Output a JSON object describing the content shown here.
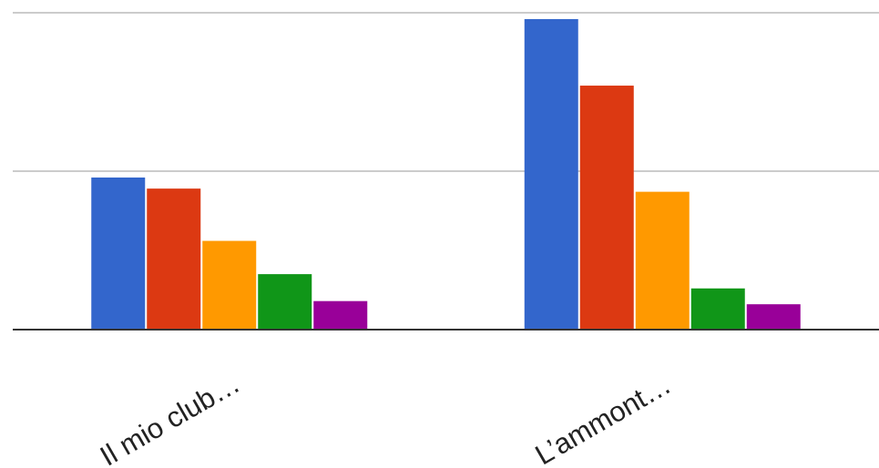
{
  "chart_data": {
    "type": "bar",
    "categories": [
      "Il mio club…",
      "L’ammont…"
    ],
    "series": [
      {
        "values": [
          9.6,
          19.6
        ],
        "color": "#3366cc"
      },
      {
        "values": [
          8.9,
          15.4
        ],
        "color": "#dc3912"
      },
      {
        "values": [
          5.6,
          8.7
        ],
        "color": "#ff9900"
      },
      {
        "values": [
          3.5,
          2.6
        ],
        "color": "#109618"
      },
      {
        "values": [
          1.8,
          1.6
        ],
        "color": "#990099"
      }
    ],
    "ylim": [
      0,
      20
    ],
    "grid": true,
    "gridlines": [
      10,
      20
    ],
    "legend": "none",
    "title": "",
    "xlabel": "",
    "ylabel": ""
  }
}
